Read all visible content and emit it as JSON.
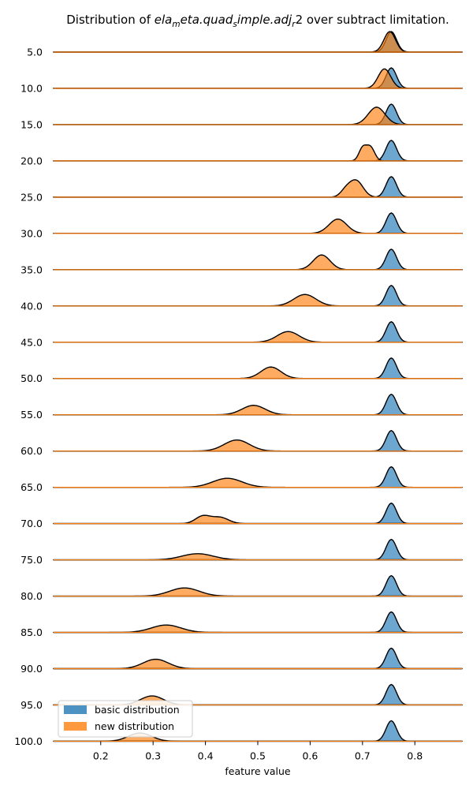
{
  "chart_data": {
    "type": "area",
    "subtype": "ridgeline",
    "title_prefix": "Distribution of ",
    "title_var": [
      "ela",
      "m",
      "eta.quad",
      "s",
      "imple.adj",
      "r",
      "2"
    ],
    "title_suffix": " over subtract limitation.",
    "xlabel": "feature value",
    "xlim": [
      0.11,
      0.89
    ],
    "xticks": [
      "0.2",
      "0.3",
      "0.4",
      "0.5",
      "0.6",
      "0.7",
      "0.8"
    ],
    "categories": [
      "5.0",
      "10.0",
      "15.0",
      "20.0",
      "25.0",
      "30.0",
      "35.0",
      "40.0",
      "45.0",
      "50.0",
      "55.0",
      "60.0",
      "65.0",
      "70.0",
      "75.0",
      "80.0",
      "85.0",
      "90.0",
      "95.0",
      "100.0"
    ],
    "colors": {
      "basic": "#1f77b4",
      "new": "#ff7f0e"
    },
    "legend": {
      "position": "lower-left",
      "entries": [
        "basic distribution",
        "new distribution"
      ]
    },
    "series": [
      {
        "name": "basic distribution",
        "peaks": [
          [
            {
              "mu": 0.755,
              "sd": 0.01,
              "amp": 1.0
            }
          ],
          [
            {
              "mu": 0.755,
              "sd": 0.01,
              "amp": 1.0
            }
          ],
          [
            {
              "mu": 0.755,
              "sd": 0.01,
              "amp": 1.0
            }
          ],
          [
            {
              "mu": 0.755,
              "sd": 0.01,
              "amp": 1.0
            }
          ],
          [
            {
              "mu": 0.755,
              "sd": 0.01,
              "amp": 1.0
            }
          ],
          [
            {
              "mu": 0.755,
              "sd": 0.01,
              "amp": 1.0
            }
          ],
          [
            {
              "mu": 0.755,
              "sd": 0.01,
              "amp": 1.0
            }
          ],
          [
            {
              "mu": 0.755,
              "sd": 0.01,
              "amp": 1.0
            }
          ],
          [
            {
              "mu": 0.755,
              "sd": 0.01,
              "amp": 1.0
            }
          ],
          [
            {
              "mu": 0.755,
              "sd": 0.01,
              "amp": 1.0
            }
          ],
          [
            {
              "mu": 0.755,
              "sd": 0.01,
              "amp": 1.0
            }
          ],
          [
            {
              "mu": 0.755,
              "sd": 0.01,
              "amp": 1.0
            }
          ],
          [
            {
              "mu": 0.755,
              "sd": 0.01,
              "amp": 1.0
            }
          ],
          [
            {
              "mu": 0.755,
              "sd": 0.01,
              "amp": 1.0
            }
          ],
          [
            {
              "mu": 0.755,
              "sd": 0.01,
              "amp": 1.0
            }
          ],
          [
            {
              "mu": 0.755,
              "sd": 0.01,
              "amp": 1.0
            }
          ],
          [
            {
              "mu": 0.755,
              "sd": 0.01,
              "amp": 1.0
            }
          ],
          [
            {
              "mu": 0.755,
              "sd": 0.01,
              "amp": 1.0
            }
          ],
          [
            {
              "mu": 0.755,
              "sd": 0.01,
              "amp": 1.0
            }
          ],
          [
            {
              "mu": 0.755,
              "sd": 0.01,
              "amp": 1.0
            }
          ]
        ]
      },
      {
        "name": "new distribution",
        "peaks": [
          [
            {
              "mu": 0.752,
              "sd": 0.011,
              "amp": 1.0
            }
          ],
          [
            {
              "mu": 0.742,
              "sd": 0.012,
              "amp": 0.95
            }
          ],
          [
            {
              "mu": 0.727,
              "sd": 0.016,
              "amp": 0.85
            }
          ],
          [
            {
              "mu": 0.7,
              "sd": 0.007,
              "amp": 0.6
            },
            {
              "mu": 0.715,
              "sd": 0.008,
              "amp": 0.68
            }
          ],
          [
            {
              "mu": 0.668,
              "sd": 0.01,
              "amp": 0.3
            },
            {
              "mu": 0.688,
              "sd": 0.013,
              "amp": 0.8
            }
          ],
          [
            {
              "mu": 0.653,
              "sd": 0.017,
              "amp": 0.7
            }
          ],
          [
            {
              "mu": 0.622,
              "sd": 0.016,
              "amp": 0.72
            }
          ],
          [
            {
              "mu": 0.59,
              "sd": 0.021,
              "amp": 0.56
            }
          ],
          [
            {
              "mu": 0.558,
              "sd": 0.021,
              "amp": 0.52
            }
          ],
          [
            {
              "mu": 0.525,
              "sd": 0.019,
              "amp": 0.56
            }
          ],
          [
            {
              "mu": 0.492,
              "sd": 0.022,
              "amp": 0.46
            }
          ],
          [
            {
              "mu": 0.46,
              "sd": 0.024,
              "amp": 0.54
            }
          ],
          [
            {
              "mu": 0.442,
              "sd": 0.028,
              "amp": 0.44
            }
          ],
          [
            {
              "mu": 0.395,
              "sd": 0.014,
              "amp": 0.36
            },
            {
              "mu": 0.428,
              "sd": 0.016,
              "amp": 0.3
            }
          ],
          [
            {
              "mu": 0.385,
              "sd": 0.03,
              "amp": 0.3
            }
          ],
          [
            {
              "mu": 0.36,
              "sd": 0.028,
              "amp": 0.4
            }
          ],
          [
            {
              "mu": 0.325,
              "sd": 0.028,
              "amp": 0.36
            }
          ],
          [
            {
              "mu": 0.305,
              "sd": 0.024,
              "amp": 0.46
            }
          ],
          [
            {
              "mu": 0.298,
              "sd": 0.022,
              "amp": 0.44
            }
          ],
          [
            {
              "mu": 0.275,
              "sd": 0.022,
              "amp": 0.4
            }
          ]
        ]
      }
    ]
  }
}
